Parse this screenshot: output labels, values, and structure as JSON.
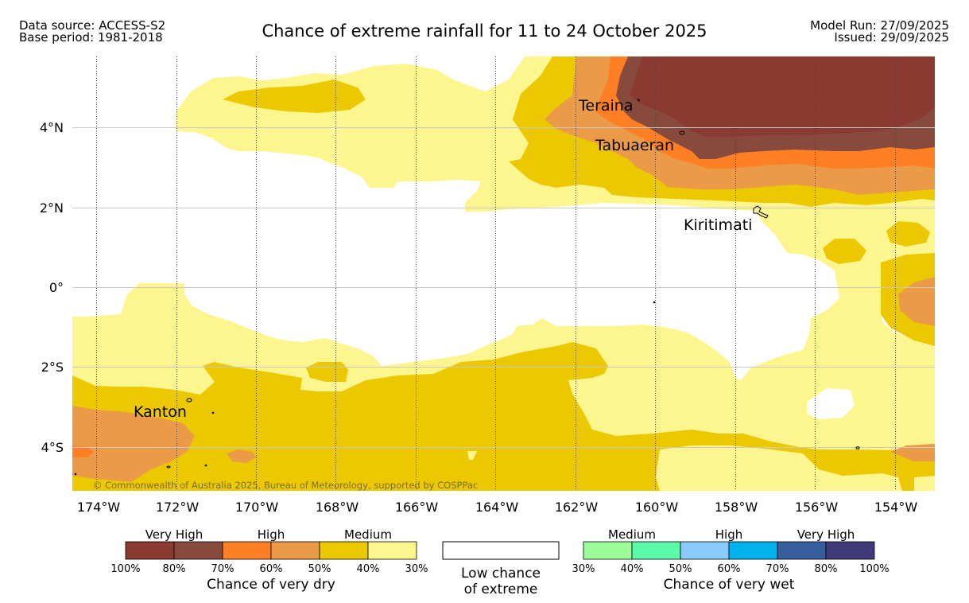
{
  "header": {
    "data_source": "Data source: ACCESS-S2",
    "base_period": "Base period: 1981-2018",
    "title": "Chance of extreme rainfall for 11 to 24 October 2025",
    "model_run": "Model Run: 27/09/2025",
    "issued": "Issued: 29/09/2025"
  },
  "map": {
    "lat_labels": [
      "4°N",
      "2°N",
      "0°",
      "2°S",
      "4°S"
    ],
    "lon_labels": [
      "174°W",
      "172°W",
      "170°W",
      "168°W",
      "166°W",
      "164°W",
      "162°W",
      "160°W",
      "158°W",
      "156°W",
      "154°W"
    ],
    "places": [
      "Teraina",
      "Tabuaeran",
      "Kiritimati",
      "Kanton"
    ],
    "copyright": "© Commonwealth of Australia 2025, Bureau of Meteorology, supported by COSPPac"
  },
  "legend": {
    "dry": {
      "groups": [
        "Very High",
        "High",
        "Medium"
      ],
      "colors": [
        "#8b3a32",
        "#874a3c",
        "#ff7f24",
        "#eb9a48",
        "#ecc800",
        "#fdf58e"
      ],
      "ticks": [
        "100%",
        "80%",
        "70%",
        "60%",
        "50%",
        "40%",
        "30%"
      ],
      "caption": "Chance of very dry"
    },
    "low": {
      "caption_line1": "Low chance",
      "caption_line2": "of extreme",
      "color": "#ffffff"
    },
    "wet": {
      "groups": [
        "Medium",
        "High",
        "Very High"
      ],
      "colors": [
        "#9cfc9a",
        "#5afaa8",
        "#89cbfb",
        "#00b2ec",
        "#365d9c",
        "#3f3b78"
      ],
      "ticks": [
        "30%",
        "40%",
        "50%",
        "60%",
        "70%",
        "80%",
        "100%"
      ],
      "caption": "Chance of very wet"
    }
  }
}
